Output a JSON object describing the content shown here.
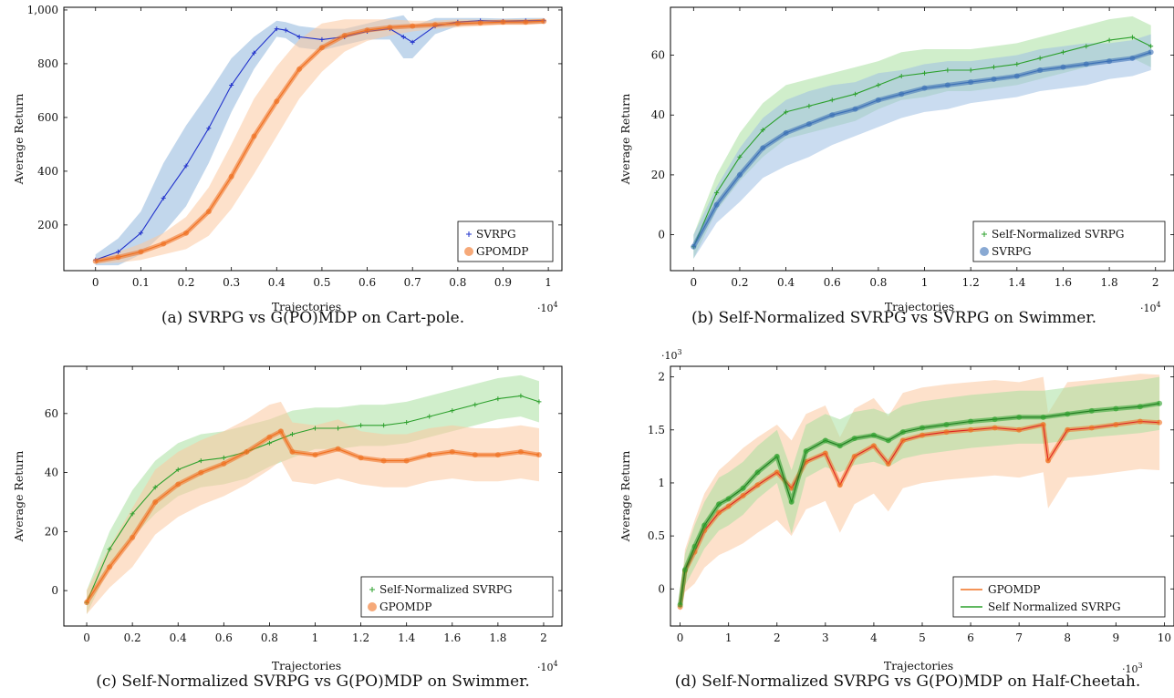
{
  "chart_data": [
    {
      "id": "a",
      "type": "line",
      "caption": "(a) SVRPG vs G(PO)MDP on Cart-pole.",
      "xlabel": "Trajectories",
      "ylabel": "Average Return",
      "x_multiplier": "·10",
      "x_multiplier_exp": "4",
      "xlim": [
        -0.07,
        1.03
      ],
      "ylim": [
        30,
        1010
      ],
      "xticks": [
        0,
        0.1,
        0.2,
        0.3,
        0.4,
        0.5,
        0.6,
        0.7,
        0.8,
        0.9,
        1
      ],
      "xtick_labels": [
        "0",
        "0.1",
        "0.2",
        "0.3",
        "0.4",
        "0.5",
        "0.6",
        "0.7",
        "0.8",
        "0.9",
        "1"
      ],
      "yticks": [
        200,
        400,
        600,
        800,
        1000
      ],
      "ytick_labels": [
        "200",
        "400",
        "600",
        "800",
        "1,000"
      ],
      "legend_position": "bottom-right",
      "series": [
        {
          "name": "SVRPG",
          "color": "#2233cc",
          "band_color": "#8fb7dd",
          "marker": "plus",
          "x": [
            0,
            0.05,
            0.1,
            0.15,
            0.2,
            0.25,
            0.3,
            0.35,
            0.4,
            0.42,
            0.45,
            0.5,
            0.55,
            0.6,
            0.65,
            0.68,
            0.7,
            0.75,
            0.8,
            0.85,
            0.9,
            0.95,
            0.99
          ],
          "y": [
            70,
            100,
            170,
            300,
            420,
            560,
            720,
            840,
            930,
            925,
            900,
            890,
            900,
            920,
            930,
            900,
            880,
            940,
            955,
            960,
            958,
            960,
            960
          ],
          "band": [
            20,
            50,
            80,
            130,
            150,
            130,
            100,
            60,
            30,
            30,
            40,
            40,
            30,
            30,
            40,
            80,
            60,
            30,
            15,
            10,
            10,
            10,
            10
          ]
        },
        {
          "name": "GPOMDP",
          "color": "#f07020",
          "band_color": "#fbc8a0",
          "marker": "circle",
          "x": [
            0,
            0.05,
            0.1,
            0.15,
            0.2,
            0.25,
            0.3,
            0.35,
            0.4,
            0.45,
            0.5,
            0.55,
            0.6,
            0.65,
            0.7,
            0.75,
            0.8,
            0.85,
            0.9,
            0.95,
            0.99
          ],
          "y": [
            65,
            80,
            100,
            130,
            170,
            250,
            380,
            530,
            660,
            780,
            860,
            905,
            925,
            935,
            940,
            945,
            950,
            952,
            955,
            955,
            958
          ],
          "band": [
            10,
            20,
            30,
            40,
            60,
            90,
            120,
            140,
            130,
            110,
            90,
            60,
            40,
            30,
            20,
            15,
            15,
            12,
            10,
            10,
            10
          ]
        }
      ]
    },
    {
      "id": "b",
      "type": "line",
      "caption": "(b) Self-Normalized SVRPG vs SVRPG on Swimmer.",
      "xlabel": "Trajectories",
      "ylabel": "Average Return",
      "x_multiplier": "·10",
      "x_multiplier_exp": "4",
      "xlim": [
        -0.1,
        2.08
      ],
      "ylim": [
        -12,
        76
      ],
      "xticks": [
        0,
        0.2,
        0.4,
        0.6,
        0.8,
        1,
        1.2,
        1.4,
        1.6,
        1.8,
        2
      ],
      "xtick_labels": [
        "0",
        "0.2",
        "0.4",
        "0.6",
        "0.8",
        "1",
        "1.2",
        "1.4",
        "1.6",
        "1.8",
        "2"
      ],
      "yticks": [
        0,
        20,
        40,
        60
      ],
      "ytick_labels": [
        "0",
        "20",
        "40",
        "60"
      ],
      "legend_position": "bottom-right",
      "series": [
        {
          "name": "Self-Normalized SVRPG",
          "color": "#2ca02c",
          "band_color": "#a9e0a0",
          "marker": "plus",
          "x": [
            0,
            0.1,
            0.2,
            0.3,
            0.4,
            0.5,
            0.6,
            0.7,
            0.8,
            0.9,
            1.0,
            1.1,
            1.2,
            1.3,
            1.4,
            1.5,
            1.6,
            1.7,
            1.8,
            1.9,
            1.98
          ],
          "y": [
            -4,
            14,
            26,
            35,
            41,
            43,
            45,
            47,
            50,
            53,
            54,
            55,
            55,
            56,
            57,
            59,
            61,
            63,
            65,
            66,
            63
          ],
          "band": [
            4,
            6,
            8,
            9,
            9,
            9,
            9,
            9,
            8,
            8,
            8,
            7,
            7,
            7,
            7,
            7,
            7,
            7,
            7,
            7,
            7
          ]
        },
        {
          "name": "SVRPG",
          "color": "#3b6fb6",
          "band_color": "#9ec0e3",
          "marker": "circle",
          "x": [
            0,
            0.1,
            0.2,
            0.3,
            0.4,
            0.5,
            0.6,
            0.7,
            0.8,
            0.9,
            1.0,
            1.1,
            1.2,
            1.3,
            1.4,
            1.5,
            1.6,
            1.7,
            1.8,
            1.9,
            1.98
          ],
          "y": [
            -4,
            10,
            20,
            29,
            34,
            37,
            40,
            42,
            45,
            47,
            49,
            50,
            51,
            52,
            53,
            55,
            56,
            57,
            58,
            59,
            61
          ],
          "band": [
            4,
            6,
            9,
            10,
            11,
            11,
            10,
            9,
            9,
            8,
            8,
            8,
            7,
            7,
            7,
            7,
            7,
            7,
            6,
            6,
            6
          ]
        }
      ]
    },
    {
      "id": "c",
      "type": "line",
      "caption": "(c) Self-Normalized SVRPG vs G(PO)MDP on Swimmer.",
      "xlabel": "Trajectories",
      "ylabel": "Average Return",
      "x_multiplier": "·10",
      "x_multiplier_exp": "4",
      "xlim": [
        -0.1,
        2.08
      ],
      "ylim": [
        -12,
        76
      ],
      "xticks": [
        0,
        0.2,
        0.4,
        0.6,
        0.8,
        1,
        1.2,
        1.4,
        1.6,
        1.8,
        2
      ],
      "xtick_labels": [
        "0",
        "0.2",
        "0.4",
        "0.6",
        "0.8",
        "1",
        "1.2",
        "1.4",
        "1.6",
        "1.8",
        "2"
      ],
      "yticks": [
        0,
        20,
        40,
        60
      ],
      "ytick_labels": [
        "0",
        "20",
        "40",
        "60"
      ],
      "legend_position": "bottom-right",
      "series": [
        {
          "name": "Self-Normalized SVRPG",
          "color": "#2ca02c",
          "band_color": "#a9e0a0",
          "marker": "plus",
          "x": [
            0,
            0.1,
            0.2,
            0.3,
            0.4,
            0.5,
            0.6,
            0.7,
            0.8,
            0.9,
            1.0,
            1.1,
            1.2,
            1.3,
            1.4,
            1.5,
            1.6,
            1.7,
            1.8,
            1.9,
            1.98
          ],
          "y": [
            -4,
            14,
            26,
            35,
            41,
            44,
            45,
            47,
            50,
            53,
            55,
            55,
            56,
            56,
            57,
            59,
            61,
            63,
            65,
            66,
            64
          ],
          "band": [
            4,
            6,
            8,
            9,
            9,
            9,
            9,
            9,
            8,
            8,
            7,
            7,
            7,
            7,
            7,
            7,
            7,
            7,
            7,
            7,
            7
          ]
        },
        {
          "name": "GPOMDP",
          "color": "#f07020",
          "band_color": "#fbc8a0",
          "marker": "circle",
          "x": [
            0,
            0.1,
            0.2,
            0.3,
            0.4,
            0.5,
            0.6,
            0.7,
            0.8,
            0.85,
            0.9,
            1.0,
            1.1,
            1.2,
            1.3,
            1.4,
            1.5,
            1.6,
            1.7,
            1.8,
            1.9,
            1.98
          ],
          "y": [
            -4,
            8,
            18,
            30,
            36,
            40,
            43,
            47,
            52,
            54,
            47,
            46,
            48,
            45,
            44,
            44,
            46,
            47,
            46,
            46,
            47,
            46
          ],
          "band": [
            4,
            7,
            10,
            11,
            11,
            11,
            11,
            11,
            11,
            10,
            10,
            10,
            10,
            9,
            9,
            9,
            9,
            9,
            9,
            9,
            9,
            9
          ]
        }
      ]
    },
    {
      "id": "d",
      "type": "line",
      "caption": "(d) Self-Normalized SVRPG vs G(PO)MDP on Half-Cheetah.",
      "xlabel": "Trajectories",
      "ylabel": "Average Return",
      "x_multiplier": "·10",
      "x_multiplier_exp": "3",
      "y_multiplier": "·10",
      "y_multiplier_exp": "3",
      "xlim": [
        -0.2,
        10.2
      ],
      "ylim": [
        -0.35,
        2.1
      ],
      "xticks": [
        0,
        1,
        2,
        3,
        4,
        5,
        6,
        7,
        8,
        9,
        10
      ],
      "xtick_labels": [
        "0",
        "1",
        "2",
        "3",
        "4",
        "5",
        "6",
        "7",
        "8",
        "9",
        "10"
      ],
      "yticks": [
        0,
        0.5,
        1,
        1.5,
        2
      ],
      "ytick_labels": [
        "0",
        "0.5",
        "1",
        "1.5",
        "2"
      ],
      "legend_position": "bottom-right",
      "series": [
        {
          "name": "GPOMDP",
          "color": "#f07020",
          "band_color": "#fbc8a0",
          "marker": "circle",
          "line_color": "#e02020",
          "x": [
            0,
            0.1,
            0.3,
            0.5,
            0.8,
            1.0,
            1.3,
            1.6,
            2.0,
            2.3,
            2.6,
            3.0,
            3.3,
            3.6,
            4.0,
            4.3,
            4.6,
            5.0,
            5.5,
            6.0,
            6.5,
            7.0,
            7.5,
            7.6,
            8.0,
            8.5,
            9.0,
            9.5,
            9.9
          ],
          "y": [
            -0.17,
            0.17,
            0.35,
            0.55,
            0.72,
            0.78,
            0.88,
            0.98,
            1.1,
            0.95,
            1.2,
            1.28,
            0.98,
            1.25,
            1.35,
            1.18,
            1.4,
            1.45,
            1.48,
            1.5,
            1.52,
            1.5,
            1.55,
            1.21,
            1.5,
            1.52,
            1.55,
            1.58,
            1.57
          ],
          "band": [
            0.05,
            0.2,
            0.3,
            0.35,
            0.4,
            0.42,
            0.45,
            0.45,
            0.45,
            0.45,
            0.45,
            0.45,
            0.45,
            0.45,
            0.45,
            0.45,
            0.45,
            0.45,
            0.45,
            0.45,
            0.45,
            0.45,
            0.45,
            0.45,
            0.45,
            0.45,
            0.45,
            0.45,
            0.45
          ]
        },
        {
          "name": "Self Normalized SVRPG",
          "color": "#2ca02c",
          "band_color": "#a9e0a0",
          "marker": "circle",
          "line_color": "#1f7a1f",
          "x": [
            0,
            0.1,
            0.3,
            0.5,
            0.8,
            1.0,
            1.3,
            1.6,
            2.0,
            2.3,
            2.6,
            3.0,
            3.3,
            3.6,
            4.0,
            4.3,
            4.6,
            5.0,
            5.5,
            6.0,
            6.5,
            7.0,
            7.5,
            8.0,
            8.5,
            9.0,
            9.5,
            9.9
          ],
          "y": [
            -0.15,
            0.18,
            0.4,
            0.6,
            0.8,
            0.85,
            0.95,
            1.1,
            1.25,
            0.82,
            1.3,
            1.4,
            1.35,
            1.42,
            1.45,
            1.4,
            1.48,
            1.52,
            1.55,
            1.58,
            1.6,
            1.62,
            1.62,
            1.65,
            1.68,
            1.7,
            1.72,
            1.75
          ],
          "band": [
            0.05,
            0.15,
            0.2,
            0.22,
            0.25,
            0.25,
            0.25,
            0.25,
            0.25,
            0.3,
            0.25,
            0.25,
            0.25,
            0.25,
            0.25,
            0.25,
            0.25,
            0.25,
            0.25,
            0.25,
            0.25,
            0.25,
            0.25,
            0.25,
            0.25,
            0.25,
            0.25,
            0.25
          ]
        }
      ]
    }
  ]
}
